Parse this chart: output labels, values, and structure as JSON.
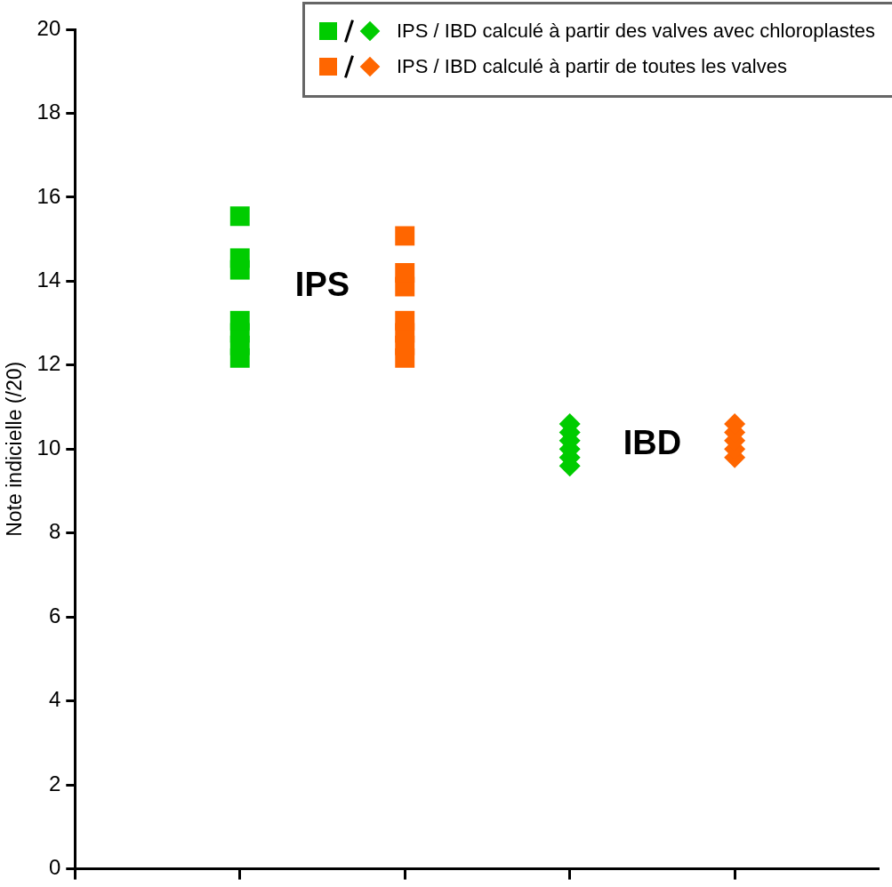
{
  "chart_data": {
    "type": "scatter",
    "ylabel": "Note indicielle (/20)",
    "categories": [
      null,
      null,
      null,
      null
    ],
    "ylim": [
      0,
      20
    ],
    "yticks": [
      0,
      2,
      4,
      6,
      8,
      10,
      12,
      14,
      16,
      18,
      20
    ],
    "tick_labels": "y",
    "grid": false,
    "legend": "top right",
    "series": [
      {
        "name": "IPS / IBD calculé à partir des valves avec chloroplastes",
        "color": "#00cc00",
        "marker": "square",
        "values": [
          15.55,
          null,
          null,
          null
        ]
      },
      {
        "color": "#00cc00",
        "marker": "square",
        "values": [
          14.55,
          null,
          null,
          null
        ]
      },
      {
        "color": "#00cc00",
        "marker": "square",
        "values": [
          14.27,
          null,
          null,
          null
        ]
      },
      {
        "color": "#00cc00",
        "marker": "square",
        "values": [
          13.06,
          null,
          null,
          null
        ]
      },
      {
        "color": "#00cc00",
        "marker": "square",
        "values": [
          12.77,
          null,
          null,
          null
        ]
      },
      {
        "color": "#00cc00",
        "marker": "square",
        "values": [
          12.47,
          null,
          null,
          null
        ]
      },
      {
        "color": "#00cc00",
        "marker": "square",
        "values": [
          12.17,
          null,
          null,
          null
        ]
      },
      {
        "name": "IPS / IBD calculé à partir de toutes les valves",
        "color": "#ff6600",
        "marker": "square",
        "values": [
          null,
          15.08,
          null,
          null
        ]
      },
      {
        "color": "#ff6600",
        "marker": "square",
        "values": [
          null,
          14.2,
          null,
          null
        ]
      },
      {
        "color": "#ff6600",
        "marker": "square",
        "values": [
          null,
          13.87,
          null,
          null
        ]
      },
      {
        "color": "#ff6600",
        "marker": "square",
        "values": [
          null,
          13.06,
          null,
          null
        ]
      },
      {
        "color": "#ff6600",
        "marker": "square",
        "values": [
          null,
          12.77,
          null,
          null
        ]
      },
      {
        "color": "#ff6600",
        "marker": "square",
        "values": [
          null,
          12.47,
          null,
          null
        ]
      },
      {
        "color": "#ff6600",
        "marker": "square",
        "values": [
          null,
          12.17,
          null,
          null
        ]
      },
      {
        "color": "#00cc00",
        "marker": "diamond",
        "values": [
          null,
          null,
          10.6,
          null
        ]
      },
      {
        "color": "#00cc00",
        "marker": "diamond",
        "values": [
          null,
          null,
          10.4,
          null
        ]
      },
      {
        "color": "#00cc00",
        "marker": "diamond",
        "values": [
          null,
          null,
          10.2,
          null
        ]
      },
      {
        "color": "#00cc00",
        "marker": "diamond",
        "values": [
          null,
          null,
          10.0,
          null
        ]
      },
      {
        "color": "#00cc00",
        "marker": "diamond",
        "values": [
          null,
          null,
          9.8,
          null
        ]
      },
      {
        "color": "#00cc00",
        "marker": "diamond",
        "values": [
          null,
          null,
          9.6,
          null
        ]
      },
      {
        "color": "#ff6600",
        "marker": "diamond",
        "values": [
          null,
          null,
          null,
          10.6
        ]
      },
      {
        "color": "#ff6600",
        "marker": "diamond",
        "values": [
          null,
          null,
          null,
          10.4
        ]
      },
      {
        "color": "#ff6600",
        "marker": "diamond",
        "values": [
          null,
          null,
          null,
          10.2
        ]
      },
      {
        "color": "#ff6600",
        "marker": "diamond",
        "values": [
          null,
          null,
          null,
          10.0
        ]
      },
      {
        "color": "#ff6600",
        "marker": "diamond",
        "values": [
          null,
          null,
          null,
          9.8
        ]
      }
    ],
    "annotations": [
      "IPS",
      "IBD"
    ]
  }
}
